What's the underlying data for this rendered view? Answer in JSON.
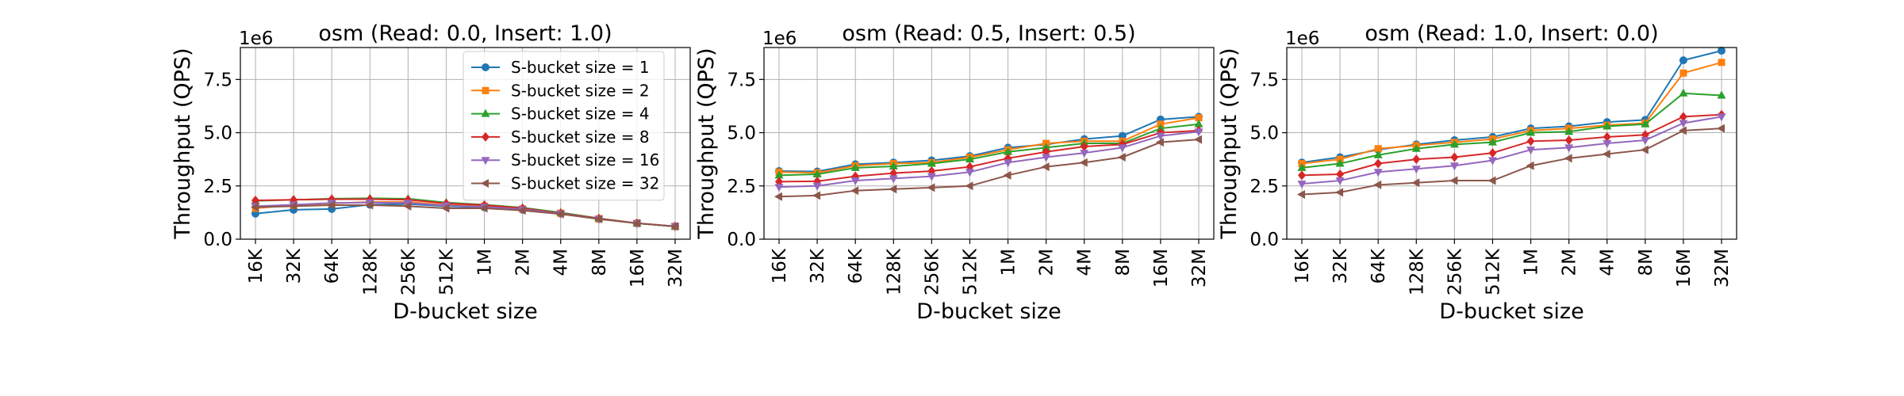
{
  "figure": {
    "colors": {
      "s1": "#1f77b4",
      "s2": "#ff7f0e",
      "s4": "#2ca02c",
      "s8": "#d62728",
      "s16": "#9467bd",
      "s32": "#8c564b",
      "grid": "#b0b0b0"
    }
  },
  "chart_data": [
    {
      "type": "line",
      "title": "osm (Read: 0.0, Insert: 1.0)",
      "xlabel": "D-bucket size",
      "ylabel": "Throughput (QPS)",
      "y_offset_label": "1e6",
      "categories": [
        "16K",
        "32K",
        "64K",
        "128K",
        "256K",
        "512K",
        "1M",
        "2M",
        "4M",
        "8M",
        "16M",
        "32M"
      ],
      "ylim": [
        0,
        9.0
      ],
      "yticks": [
        "0.0",
        "2.5",
        "5.0",
        "7.5"
      ],
      "grid": true,
      "legend": "top-right",
      "series": [
        {
          "name": "S-bucket size = 1",
          "marker": "circle",
          "values": [
            1.2,
            1.38,
            1.42,
            1.62,
            1.65,
            1.55,
            1.5,
            1.38,
            1.2,
            0.95,
            0.75,
            0.6
          ]
        },
        {
          "name": "S-bucket size = 2",
          "marker": "square",
          "values": [
            1.45,
            1.6,
            1.68,
            1.75,
            1.75,
            1.6,
            1.55,
            1.42,
            1.22,
            0.95,
            0.75,
            0.6
          ]
        },
        {
          "name": "S-bucket size = 4",
          "marker": "triangle-up",
          "values": [
            1.8,
            1.85,
            1.9,
            1.92,
            1.9,
            1.72,
            1.62,
            1.48,
            1.25,
            0.98,
            0.75,
            0.6
          ]
        },
        {
          "name": "S-bucket size = 8",
          "marker": "diamond",
          "values": [
            1.82,
            1.85,
            1.88,
            1.88,
            1.85,
            1.68,
            1.6,
            1.45,
            1.22,
            0.97,
            0.75,
            0.6
          ]
        },
        {
          "name": "S-bucket size = 16",
          "marker": "triangle-down",
          "values": [
            1.55,
            1.62,
            1.7,
            1.72,
            1.7,
            1.58,
            1.52,
            1.4,
            1.2,
            0.95,
            0.75,
            0.6
          ]
        },
        {
          "name": "S-bucket size = 32",
          "marker": "triangle-left",
          "values": [
            1.5,
            1.55,
            1.6,
            1.6,
            1.55,
            1.45,
            1.45,
            1.35,
            1.18,
            0.95,
            0.75,
            0.6
          ]
        }
      ]
    },
    {
      "type": "line",
      "title": "osm (Read: 0.5, Insert: 0.5)",
      "xlabel": "D-bucket size",
      "ylabel": "Throughput (QPS)",
      "y_offset_label": "1e6",
      "categories": [
        "16K",
        "32K",
        "64K",
        "128K",
        "256K",
        "512K",
        "1M",
        "2M",
        "4M",
        "8M",
        "16M",
        "32M"
      ],
      "ylim": [
        0,
        9.0
      ],
      "yticks": [
        "0.0",
        "2.5",
        "5.0",
        "7.5"
      ],
      "grid": true,
      "series": [
        {
          "name": "S-bucket size = 1",
          "marker": "circle",
          "values": [
            3.2,
            3.18,
            3.52,
            3.6,
            3.7,
            3.9,
            4.3,
            4.45,
            4.7,
            4.85,
            5.62,
            5.75
          ]
        },
        {
          "name": "S-bucket size = 2",
          "marker": "square",
          "values": [
            3.15,
            3.12,
            3.45,
            3.55,
            3.6,
            3.85,
            4.2,
            4.5,
            4.6,
            4.6,
            5.4,
            5.7
          ]
        },
        {
          "name": "S-bucket size = 4",
          "marker": "triangle-up",
          "values": [
            3.0,
            3.05,
            3.35,
            3.42,
            3.55,
            3.75,
            4.1,
            4.3,
            4.5,
            4.5,
            5.2,
            5.4
          ]
        },
        {
          "name": "S-bucket size = 8",
          "marker": "diamond",
          "values": [
            2.7,
            2.72,
            2.95,
            3.1,
            3.2,
            3.4,
            3.8,
            4.1,
            4.35,
            4.45,
            5.0,
            5.1
          ]
        },
        {
          "name": "S-bucket size = 16",
          "marker": "triangle-down",
          "values": [
            2.45,
            2.5,
            2.75,
            2.85,
            2.95,
            3.15,
            3.6,
            3.85,
            4.05,
            4.3,
            4.85,
            5.05
          ]
        },
        {
          "name": "S-bucket size = 32",
          "marker": "triangle-left",
          "values": [
            2.0,
            2.05,
            2.28,
            2.35,
            2.42,
            2.5,
            3.0,
            3.4,
            3.6,
            3.85,
            4.55,
            4.68
          ]
        }
      ]
    },
    {
      "type": "line",
      "title": "osm (Read: 1.0, Insert: 0.0)",
      "xlabel": "D-bucket size",
      "ylabel": "Throughput (QPS)",
      "y_offset_label": "1e6",
      "categories": [
        "16K",
        "32K",
        "64K",
        "128K",
        "256K",
        "512K",
        "1M",
        "2M",
        "4M",
        "8M",
        "16M",
        "32M"
      ],
      "ylim": [
        0,
        9.0
      ],
      "yticks": [
        "0.0",
        "2.5",
        "5.0",
        "7.5"
      ],
      "grid": true,
      "series": [
        {
          "name": "S-bucket size = 1",
          "marker": "circle",
          "values": [
            3.6,
            3.85,
            4.2,
            4.45,
            4.65,
            4.8,
            5.2,
            5.3,
            5.5,
            5.6,
            8.4,
            8.85
          ]
        },
        {
          "name": "S-bucket size = 2",
          "marker": "square",
          "values": [
            3.55,
            3.75,
            4.25,
            4.4,
            4.55,
            4.7,
            5.1,
            5.2,
            5.35,
            5.45,
            7.8,
            8.3
          ]
        },
        {
          "name": "S-bucket size = 4",
          "marker": "triangle-up",
          "values": [
            3.35,
            3.55,
            3.95,
            4.25,
            4.45,
            4.55,
            5.0,
            5.05,
            5.3,
            5.4,
            6.85,
            6.75
          ]
        },
        {
          "name": "S-bucket size = 8",
          "marker": "diamond",
          "values": [
            3.0,
            3.05,
            3.55,
            3.75,
            3.85,
            4.05,
            4.6,
            4.65,
            4.8,
            4.9,
            5.75,
            5.85
          ]
        },
        {
          "name": "S-bucket size = 16",
          "marker": "triangle-down",
          "values": [
            2.6,
            2.75,
            3.15,
            3.3,
            3.45,
            3.7,
            4.2,
            4.3,
            4.5,
            4.65,
            5.45,
            5.75
          ]
        },
        {
          "name": "S-bucket size = 32",
          "marker": "triangle-left",
          "values": [
            2.1,
            2.2,
            2.55,
            2.65,
            2.75,
            2.75,
            3.45,
            3.8,
            4.0,
            4.2,
            5.1,
            5.2
          ]
        }
      ]
    }
  ]
}
